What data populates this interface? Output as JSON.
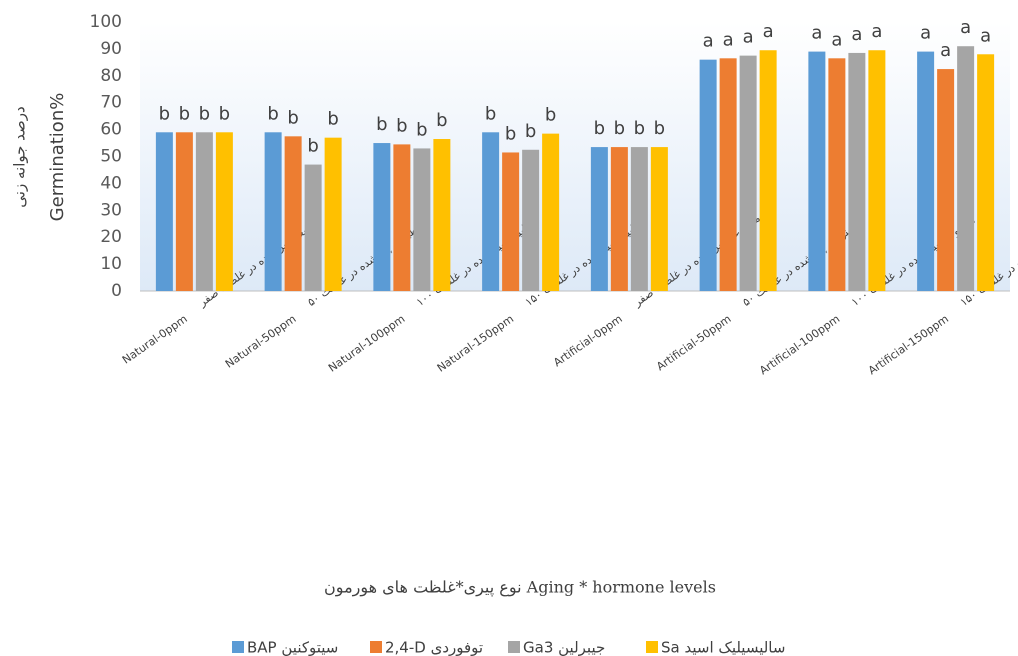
{
  "chart_data": {
    "type": "bar",
    "y_label": "درصد جوانه زنی",
    "y_label_en": "Germination%",
    "x_label": "نوع پیری*غلظت های هورمون Aging * hormone levels",
    "categories": [
      "Natural-0ppm",
      "Natural-50ppm",
      "Natural-100ppm",
      "Natural-150ppm",
      "Artificial-0ppm",
      "Artificial-50ppm",
      "Artificial-100ppm",
      "Artificial-150ppm"
    ],
    "category_sublabels": [
      "طبیعی پیر شده در غلظت صفر",
      "طبیعی پیر شده در غلظت ۵۰",
      "طبیعی پیر شده در غلظت ۱۰۰",
      "طبیعی پیر شده در غلظت ۱۵۰",
      "مصنوعی پیر شده در غلظت صفر",
      "مصنوعی پیر شده در غلظت ۵۰",
      "مصنوعی پیر شده در غلظت ۱۰۰",
      "مصنوعی پیر شده در غلظت ۱۵۰"
    ],
    "series": [
      {
        "name": "BAP سیتوکنین",
        "color": "#5b9bd5",
        "values": [
          59,
          59,
          55,
          59,
          53.5,
          86,
          89,
          89
        ],
        "letters": [
          "b",
          "b",
          "b",
          "b",
          "b",
          "a",
          "a",
          "a"
        ]
      },
      {
        "name": "2,4-D توفوردی",
        "color": "#ed7d31",
        "values": [
          59,
          57.5,
          54.5,
          51.5,
          53.5,
          86.5,
          86.5,
          82.5
        ],
        "letters": [
          "b",
          "b",
          "b",
          "b",
          "b",
          "a",
          "a",
          "a"
        ]
      },
      {
        "name": "Ga3 جیبرلین",
        "color": "#a5a5a5",
        "values": [
          59,
          47,
          53,
          52.5,
          53.5,
          87.5,
          88.5,
          91
        ],
        "letters": [
          "b",
          "b",
          "b",
          "b",
          "b",
          "a",
          "a",
          "a"
        ]
      },
      {
        "name": "Sa سالیسیلیک اسید",
        "color": "#ffc000",
        "values": [
          59,
          57,
          56.5,
          58.5,
          53.5,
          89.5,
          89.5,
          88
        ],
        "letters": [
          "b",
          "b",
          "b",
          "b",
          "b",
          "a",
          "a",
          "a"
        ]
      }
    ],
    "ylim": [
      0,
      100
    ],
    "yticks": [
      0,
      10,
      20,
      30,
      40,
      50,
      60,
      70,
      80,
      90,
      100
    ],
    "grid": false
  }
}
